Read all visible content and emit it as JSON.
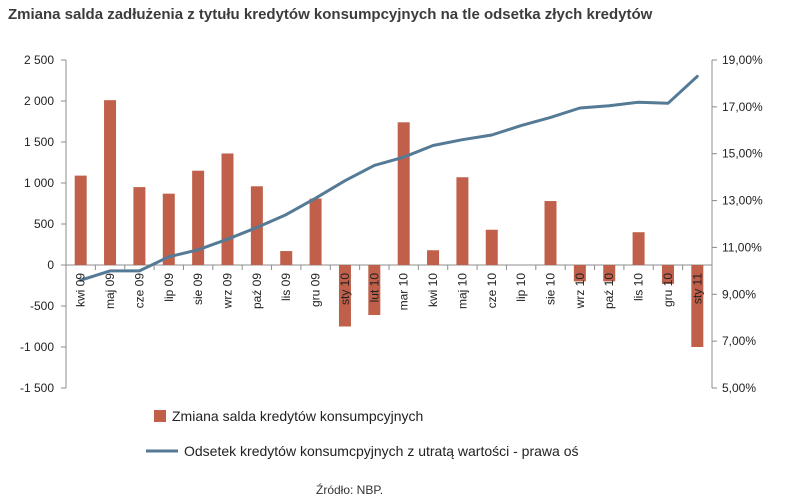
{
  "chart_data": {
    "type": "bar+line",
    "title": "Zmiana salda zadłużenia z tytułu kredytów konsumpcyjnych na tle odsetka złych kredytów",
    "categories": [
      "kwi 09",
      "maj 09",
      "cze 09",
      "lip 09",
      "sie 09",
      "wrz 09",
      "paź 09",
      "lis 09",
      "gru 09",
      "sty 10",
      "lut 10",
      "mar 10",
      "kwi 10",
      "maj 10",
      "cze 10",
      "lip 10",
      "sie 10",
      "wrz 10",
      "paź 10",
      "lis 10",
      "gru 10",
      "sty 11"
    ],
    "y_left": {
      "ylim": [
        -1500,
        2500
      ],
      "ticks": [
        2500,
        2000,
        1500,
        1000,
        500,
        0,
        -500,
        -1000,
        -1500
      ],
      "tick_labels": [
        "2 500",
        "2 000",
        "1 500",
        "1 000",
        "500",
        "0",
        "-500",
        "-1 000",
        "-1 500"
      ]
    },
    "y_right": {
      "ylim": [
        5,
        19
      ],
      "ticks": [
        19,
        17,
        15,
        13,
        11,
        9,
        7,
        5
      ],
      "tick_labels": [
        "19,00%",
        "17,00%",
        "15,00%",
        "13,00%",
        "11,00%",
        "9,00%",
        "7,00%",
        "5,00%"
      ]
    },
    "series": [
      {
        "name": "Zmiana salda kredytów konsumpcyjnych",
        "type": "bar",
        "axis": "left",
        "color": "#c0604a",
        "values": [
          1090,
          2010,
          950,
          870,
          1150,
          1360,
          960,
          170,
          810,
          -750,
          -610,
          1740,
          180,
          1070,
          430,
          0,
          780,
          -200,
          -200,
          400,
          -230,
          -1000
        ]
      },
      {
        "name": "Odsetek kredytów konsumcpyjnych z utratą wartości - prawa oś",
        "type": "line",
        "axis": "right",
        "color": "#557a96",
        "values": [
          9.6,
          10.0,
          10.0,
          10.6,
          10.9,
          11.35,
          11.85,
          12.4,
          13.1,
          13.85,
          14.5,
          14.85,
          15.35,
          15.6,
          15.8,
          16.2,
          16.55,
          16.95,
          17.05,
          17.2,
          17.15,
          18.3
        ]
      }
    ],
    "grid": false,
    "legend_position": "bottom",
    "source": "Źródło: NBP."
  }
}
